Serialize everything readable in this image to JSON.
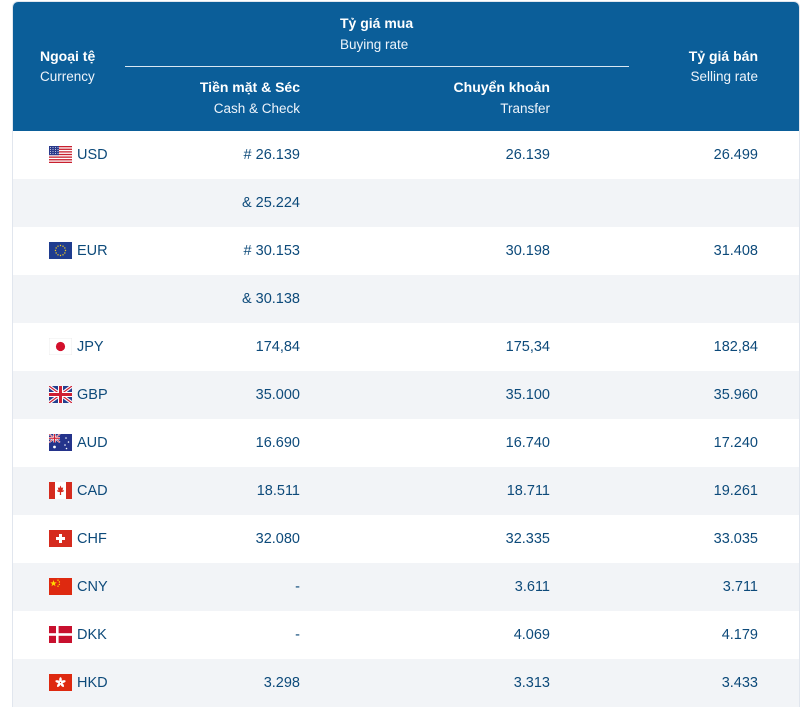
{
  "header": {
    "currency_vi": "Ngoại tệ",
    "currency_en": "Currency",
    "buying_vi": "Tỷ giá mua",
    "buying_en": "Buying rate",
    "cash_vi": "Tiền mặt & Séc",
    "cash_en": "Cash & Check",
    "transfer_vi": "Chuyển khoản",
    "transfer_en": "Transfer",
    "selling_vi": "Tỷ giá bán",
    "selling_en": "Selling rate"
  },
  "rows": [
    {
      "code": "USD",
      "flag": "us-flag-icon",
      "cash": "# 26.139",
      "transfer": "26.139",
      "sell": "26.499"
    },
    {
      "code": "",
      "flag": "",
      "cash": "& 25.224",
      "transfer": "",
      "sell": ""
    },
    {
      "code": "EUR",
      "flag": "eu-flag-icon",
      "cash": "# 30.153",
      "transfer": "30.198",
      "sell": "31.408"
    },
    {
      "code": "",
      "flag": "",
      "cash": "& 30.138",
      "transfer": "",
      "sell": ""
    },
    {
      "code": "JPY",
      "flag": "jp-flag-icon",
      "cash": "174,84",
      "transfer": "175,34",
      "sell": "182,84"
    },
    {
      "code": "GBP",
      "flag": "gb-flag-icon",
      "cash": "35.000",
      "transfer": "35.100",
      "sell": "35.960"
    },
    {
      "code": "AUD",
      "flag": "au-flag-icon",
      "cash": "16.690",
      "transfer": "16.740",
      "sell": "17.240"
    },
    {
      "code": "CAD",
      "flag": "ca-flag-icon",
      "cash": "18.511",
      "transfer": "18.711",
      "sell": "19.261"
    },
    {
      "code": "CHF",
      "flag": "ch-flag-icon",
      "cash": "32.080",
      "transfer": "32.335",
      "sell": "33.035"
    },
    {
      "code": "CNY",
      "flag": "cn-flag-icon",
      "cash": "-",
      "transfer": "3.611",
      "sell": "3.711"
    },
    {
      "code": "DKK",
      "flag": "dk-flag-icon",
      "cash": "-",
      "transfer": "4.069",
      "sell": "4.179"
    },
    {
      "code": "HKD",
      "flag": "hk-flag-icon",
      "cash": "3.298",
      "transfer": "3.313",
      "sell": "3.433"
    }
  ],
  "colors": {
    "header_bg": "#0b5e99",
    "row_alt_bg": "#f2f4f7",
    "text": "#0d4a7a"
  }
}
